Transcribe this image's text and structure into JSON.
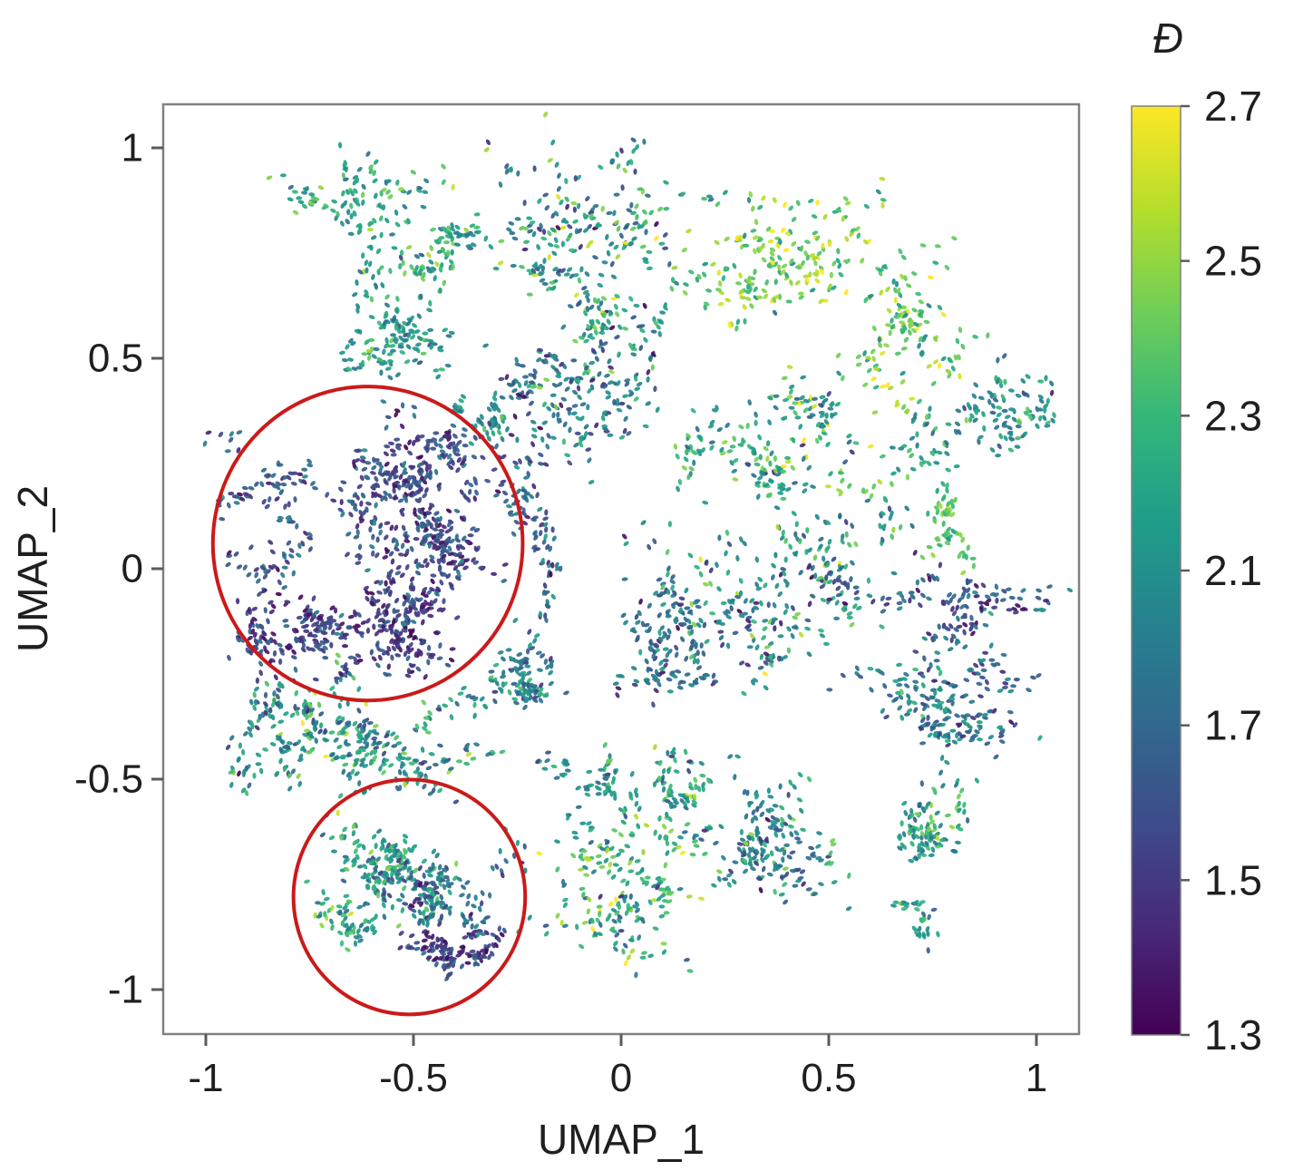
{
  "chart_data": {
    "type": "scatter",
    "title": "",
    "xlabel": "UMAP_1",
    "ylabel": "UMAP_2",
    "xlim": [
      -1.1,
      1.1
    ],
    "ylim": [
      -1.1,
      1.1
    ],
    "grid": false,
    "x_ticks": {
      "values": [
        -1,
        -0.5,
        0,
        0.5,
        1
      ],
      "labels": [
        "-1",
        "-0.5",
        "0",
        "0.5",
        "1"
      ]
    },
    "y_ticks": {
      "values": [
        1,
        0.5,
        0,
        -0.5,
        -1
      ],
      "labels": [
        "1",
        "0.5",
        "0",
        "-0.5",
        "-1"
      ]
    },
    "colorbar": {
      "title": "Đ",
      "vmin": 1.3,
      "vmax": 2.7,
      "tick_labels": [
        "2.7",
        "2.5",
        "2.3",
        "2.1",
        "1.7",
        "1.5",
        "1.3"
      ],
      "colormap": "viridis",
      "stops": [
        "#440154",
        "#482878",
        "#3e4a89",
        "#31688e",
        "#26828e",
        "#1f9e89",
        "#35b779",
        "#6ece58",
        "#b5de2b",
        "#fde725"
      ]
    },
    "annotations": [
      {
        "type": "circle",
        "cx": -0.61,
        "cy": 0.06,
        "r": 0.373,
        "color": "#cb1a1a",
        "stroke_width": 4
      },
      {
        "type": "circle",
        "cx": -0.51,
        "cy": -0.78,
        "r": 0.279,
        "color": "#cb1a1a",
        "stroke_width": 4
      }
    ],
    "clusters": [
      {
        "x": -0.66,
        "y": 0.87,
        "sx": 0.07,
        "sy": 0.08,
        "n": 80,
        "d": 2.1,
        "ds": 0.18
      },
      {
        "x": -0.47,
        "y": 0.76,
        "sx": 0.1,
        "sy": 0.09,
        "n": 120,
        "d": 2.12,
        "ds": 0.2
      },
      {
        "x": -0.09,
        "y": 0.85,
        "sx": 0.12,
        "sy": 0.1,
        "n": 220,
        "d": 2.0,
        "ds": 0.33
      },
      {
        "x": 0.38,
        "y": 0.74,
        "sx": 0.13,
        "sy": 0.09,
        "n": 190,
        "d": 2.4,
        "ds": 0.22
      },
      {
        "x": 0.72,
        "y": 0.57,
        "sx": 0.1,
        "sy": 0.09,
        "n": 130,
        "d": 2.35,
        "ds": 0.2
      },
      {
        "x": -0.52,
        "y": 0.54,
        "sx": 0.1,
        "sy": 0.07,
        "n": 130,
        "d": 2.05,
        "ds": 0.16
      },
      {
        "x": -0.32,
        "y": 0.37,
        "sx": 0.05,
        "sy": 0.05,
        "n": 45,
        "d": 2.0,
        "ds": 0.15
      },
      {
        "x": -0.1,
        "y": 0.44,
        "sx": 0.11,
        "sy": 0.1,
        "n": 220,
        "d": 1.85,
        "ds": 0.25
      },
      {
        "x": 0.05,
        "y": 0.62,
        "sx": 0.07,
        "sy": 0.06,
        "n": 55,
        "d": 2.2,
        "ds": 0.16
      },
      {
        "x": 0.25,
        "y": 0.28,
        "sx": 0.07,
        "sy": 0.09,
        "n": 65,
        "d": 2.15,
        "ds": 0.2
      },
      {
        "x": 0.47,
        "y": 0.26,
        "sx": 0.12,
        "sy": 0.1,
        "n": 170,
        "d": 2.1,
        "ds": 0.28
      },
      {
        "x": 0.9,
        "y": 0.33,
        "sx": 0.09,
        "sy": 0.08,
        "n": 125,
        "d": 2.0,
        "ds": 0.18
      },
      {
        "x": -0.55,
        "y": 0.22,
        "sx": 0.1,
        "sy": 0.08,
        "n": 250,
        "d": 1.62,
        "ds": 0.15
      },
      {
        "x": -0.82,
        "y": 0.12,
        "sx": 0.09,
        "sy": 0.09,
        "n": 115,
        "d": 1.7,
        "ds": 0.15
      },
      {
        "x": -0.79,
        "y": -0.14,
        "sx": 0.09,
        "sy": 0.07,
        "n": 180,
        "d": 1.58,
        "ds": 0.14
      },
      {
        "x": -0.5,
        "y": -0.16,
        "sx": 0.08,
        "sy": 0.07,
        "n": 170,
        "d": 1.55,
        "ds": 0.13
      },
      {
        "x": -0.44,
        "y": 0.05,
        "sx": 0.09,
        "sy": 0.08,
        "n": 210,
        "d": 1.62,
        "ds": 0.16
      },
      {
        "x": -0.22,
        "y": 0.1,
        "sx": 0.05,
        "sy": 0.11,
        "n": 85,
        "d": 1.75,
        "ds": 0.18
      },
      {
        "x": -0.28,
        "y": -0.25,
        "sx": 0.07,
        "sy": 0.06,
        "n": 115,
        "d": 1.9,
        "ds": 0.2
      },
      {
        "x": -0.72,
        "y": -0.36,
        "sx": 0.08,
        "sy": 0.06,
        "n": 125,
        "d": 2.0,
        "ds": 0.25
      },
      {
        "x": -0.85,
        "y": -0.45,
        "sx": 0.06,
        "sy": 0.06,
        "n": 85,
        "d": 2.0,
        "ds": 0.25
      },
      {
        "x": -0.52,
        "y": -0.45,
        "sx": 0.08,
        "sy": 0.06,
        "n": 135,
        "d": 2.05,
        "ds": 0.25
      },
      {
        "x": 0.13,
        "y": -0.16,
        "sx": 0.08,
        "sy": 0.08,
        "n": 145,
        "d": 1.8,
        "ds": 0.2
      },
      {
        "x": 0.37,
        "y": -0.07,
        "sx": 0.12,
        "sy": 0.11,
        "n": 240,
        "d": 1.95,
        "ds": 0.28
      },
      {
        "x": 0.8,
        "y": 0.12,
        "sx": 0.05,
        "sy": 0.05,
        "n": 55,
        "d": 2.3,
        "ds": 0.15
      },
      {
        "x": 0.85,
        "y": -0.12,
        "sx": 0.11,
        "sy": 0.08,
        "n": 150,
        "d": 1.68,
        "ds": 0.18
      },
      {
        "x": 0.74,
        "y": -0.33,
        "sx": 0.1,
        "sy": 0.08,
        "n": 165,
        "d": 1.85,
        "ds": 0.2
      },
      {
        "x": -0.55,
        "y": -0.7,
        "sx": 0.09,
        "sy": 0.07,
        "n": 140,
        "d": 2.1,
        "ds": 0.2
      },
      {
        "x": -0.45,
        "y": -0.77,
        "sx": 0.09,
        "sy": 0.08,
        "n": 150,
        "d": 1.8,
        "ds": 0.2
      },
      {
        "x": -0.42,
        "y": -0.88,
        "sx": 0.06,
        "sy": 0.05,
        "n": 115,
        "d": 1.55,
        "ds": 0.15
      },
      {
        "x": -0.63,
        "y": -0.83,
        "sx": 0.07,
        "sy": 0.06,
        "n": 75,
        "d": 2.15,
        "ds": 0.18
      },
      {
        "x": -0.03,
        "y": -0.74,
        "sx": 0.1,
        "sy": 0.1,
        "n": 180,
        "d": 2.2,
        "ds": 0.26
      },
      {
        "x": 0.36,
        "y": -0.68,
        "sx": 0.1,
        "sy": 0.09,
        "n": 190,
        "d": 1.95,
        "ds": 0.25
      },
      {
        "x": 0.72,
        "y": -0.62,
        "sx": 0.08,
        "sy": 0.07,
        "n": 105,
        "d": 2.1,
        "ds": 0.2
      },
      {
        "x": -0.08,
        "y": -0.51,
        "sx": 0.05,
        "sy": 0.06,
        "n": 60,
        "d": 2.05,
        "ds": 0.18
      },
      {
        "x": 0.15,
        "y": -0.52,
        "sx": 0.06,
        "sy": 0.05,
        "n": 75,
        "d": 2.1,
        "ds": 0.2
      },
      {
        "x": 0.75,
        "y": -0.8,
        "sx": 0.05,
        "sy": 0.04,
        "n": 30,
        "d": 2.05,
        "ds": 0.18
      }
    ],
    "legend": {
      "position": "right",
      "kind": "colorbar"
    }
  },
  "style": {
    "axis_color": "#808080",
    "tick_color": "#5a5a5a",
    "text_color": "#1f1f1f",
    "background": "#ffffff",
    "annotation_red": "#cb1a1a"
  },
  "seed": 12345
}
